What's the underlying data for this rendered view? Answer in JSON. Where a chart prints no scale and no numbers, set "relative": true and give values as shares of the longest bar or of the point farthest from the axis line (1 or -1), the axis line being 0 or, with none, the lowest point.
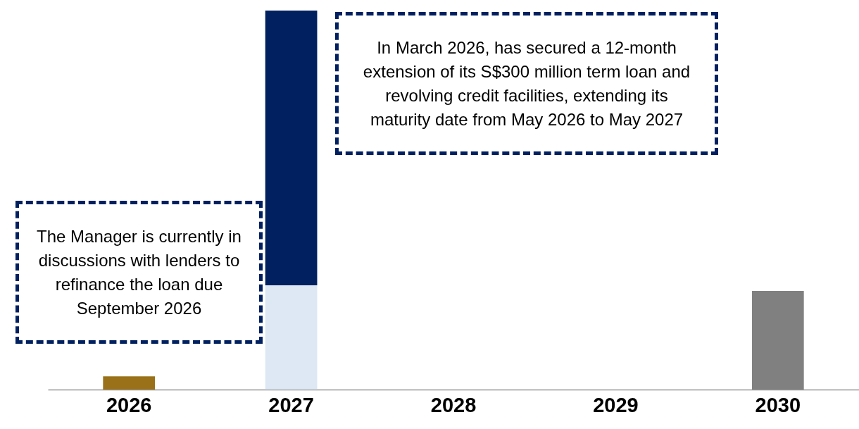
{
  "chart_data": {
    "type": "bar",
    "relative": true,
    "stacked": true,
    "categories": [
      "2026",
      "2027",
      "2028",
      "2029",
      "2030"
    ],
    "series": [
      {
        "color": "#9a7119",
        "values": [
          0.035,
          null,
          null,
          null,
          null
        ]
      },
      {
        "color": "#dde8f4",
        "values": [
          null,
          0.275,
          null,
          null,
          null
        ]
      },
      {
        "color": "#002060",
        "values": [
          null,
          0.725,
          null,
          null,
          null
        ]
      },
      {
        "color": "#808080",
        "values": [
          null,
          null,
          null,
          null,
          0.26
        ]
      }
    ],
    "annotations": [
      "The Manager is currently in discussions with lenders to refinance the loan due September 2026",
      "In March 2026, has secured a 12-month extension of its S$300 million term loan and revolving credit facilities, extending its maturity date from May 2026 to May 2027"
    ],
    "grid": false
  }
}
